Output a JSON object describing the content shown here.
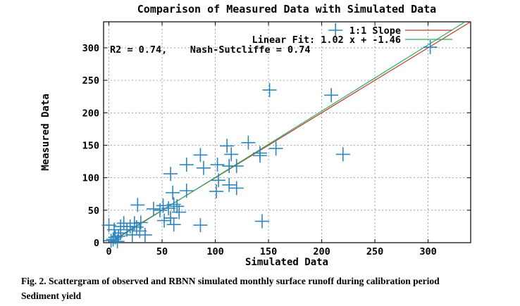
{
  "chart_data": {
    "type": "scatter",
    "title": "Comparison of Measured Data with Simulated Data",
    "xlabel": "Simulated Data",
    "ylabel": "Measured Data",
    "xlim": [
      -5,
      340
    ],
    "ylim": [
      0,
      340
    ],
    "xticks": [
      0,
      50,
      100,
      150,
      200,
      250,
      300
    ],
    "yticks": [
      0,
      50,
      100,
      150,
      200,
      250,
      300
    ],
    "grid": true,
    "legend_position": "top-right",
    "stats_text": "R2 = 0.74,    Nash-Sutcliffe = 0.74",
    "colors": {
      "points": "#2e86c1",
      "one_to_one": "#c0392b",
      "fit": "#27ae60"
    },
    "series": [
      {
        "name": "",
        "points": [
          [
            302,
            301
          ],
          [
            213,
            327
          ],
          [
            209,
            227
          ],
          [
            151,
            235
          ],
          [
            220,
            136
          ],
          [
            131,
            154
          ],
          [
            142,
            138
          ],
          [
            142,
            134
          ],
          [
            157,
            145
          ],
          [
            144,
            33
          ],
          [
            111,
            149
          ],
          [
            115,
            136
          ],
          [
            120,
            118
          ],
          [
            113,
            118
          ],
          [
            102,
            120
          ],
          [
            113,
            89
          ],
          [
            120,
            84
          ],
          [
            103,
            96
          ],
          [
            101,
            79
          ],
          [
            86,
            135
          ],
          [
            89,
            115
          ],
          [
            73,
            120
          ],
          [
            58,
            106
          ],
          [
            73,
            80
          ],
          [
            60,
            77
          ],
          [
            64,
            56
          ],
          [
            61,
            59
          ],
          [
            56,
            53
          ],
          [
            51,
            57
          ],
          [
            48,
            50
          ],
          [
            66,
            47
          ],
          [
            58,
            38
          ],
          [
            61,
            28
          ],
          [
            52,
            34
          ],
          [
            86,
            27
          ],
          [
            42,
            52
          ],
          [
            27,
            58
          ],
          [
            34,
            12
          ],
          [
            29,
            18
          ],
          [
            26,
            24
          ],
          [
            24,
            30
          ],
          [
            20,
            25
          ],
          [
            17,
            20
          ],
          [
            14,
            30
          ],
          [
            11,
            15
          ],
          [
            9,
            10
          ],
          [
            6,
            8
          ],
          [
            4,
            5
          ],
          [
            2,
            3
          ],
          [
            0,
            27
          ],
          [
            5,
            20
          ],
          [
            8,
            2
          ],
          [
            11,
            25
          ],
          [
            22,
            12
          ],
          [
            30,
            31
          ]
        ]
      }
    ],
    "lines": [
      {
        "name": "1:1 Slope",
        "slope": 1.0,
        "intercept": 0.0
      },
      {
        "name": "Linear Fit: 1.02 x + -1.46",
        "slope": 1.02,
        "intercept": -1.46
      }
    ]
  },
  "caption": {
    "line1": "Fig.  2. Scattergram of observed and RBNN simulated monthly surface runoff   during calibration period",
    "line2": "Sediment yield"
  }
}
